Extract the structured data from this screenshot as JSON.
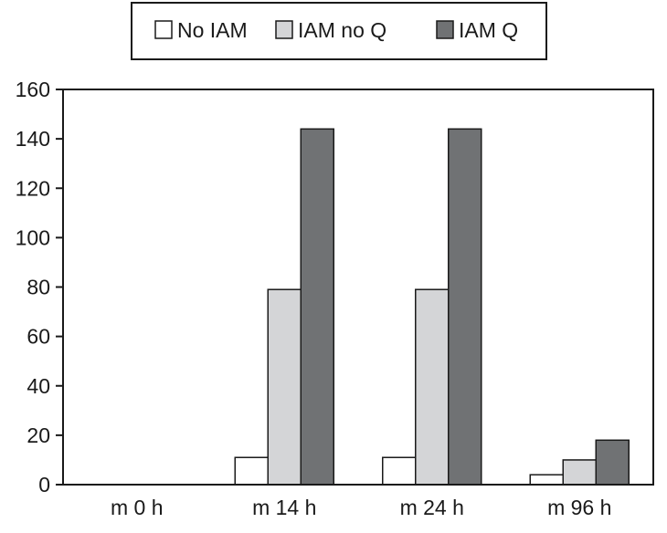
{
  "chart_data": {
    "type": "bar",
    "categories": [
      "m 0 h",
      "m 14 h",
      "m 24 h",
      "m 96 h"
    ],
    "series": [
      {
        "name": "No IAM",
        "values": [
          0,
          11,
          11,
          4
        ],
        "color": "#ffffff"
      },
      {
        "name": "IAM no Q",
        "values": [
          0,
          79,
          79,
          10
        ],
        "color": "#d4d5d7"
      },
      {
        "name": "IAM Q",
        "values": [
          0,
          144,
          144,
          18
        ],
        "color": "#707274"
      }
    ],
    "ylim": [
      0,
      160
    ],
    "yticks": [
      0,
      20,
      40,
      60,
      80,
      100,
      120,
      140,
      160
    ],
    "title": "",
    "xlabel": "",
    "ylabel": "",
    "grid": false,
    "legend_position": "top"
  }
}
